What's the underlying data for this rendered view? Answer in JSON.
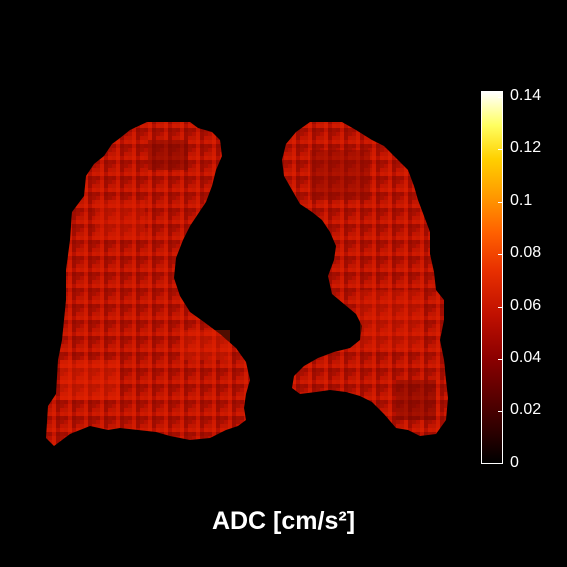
{
  "image": {
    "subject": "lung ADC map",
    "colormap": "hot",
    "background_color": "#000000",
    "tissue_color": "#c01200"
  },
  "colorbar": {
    "ticks": [
      "0.14",
      "0.12",
      "0.1",
      "0.08",
      "0.06",
      "0.04",
      "0.02",
      "0"
    ]
  },
  "caption": "ADC [cm/s²]"
}
